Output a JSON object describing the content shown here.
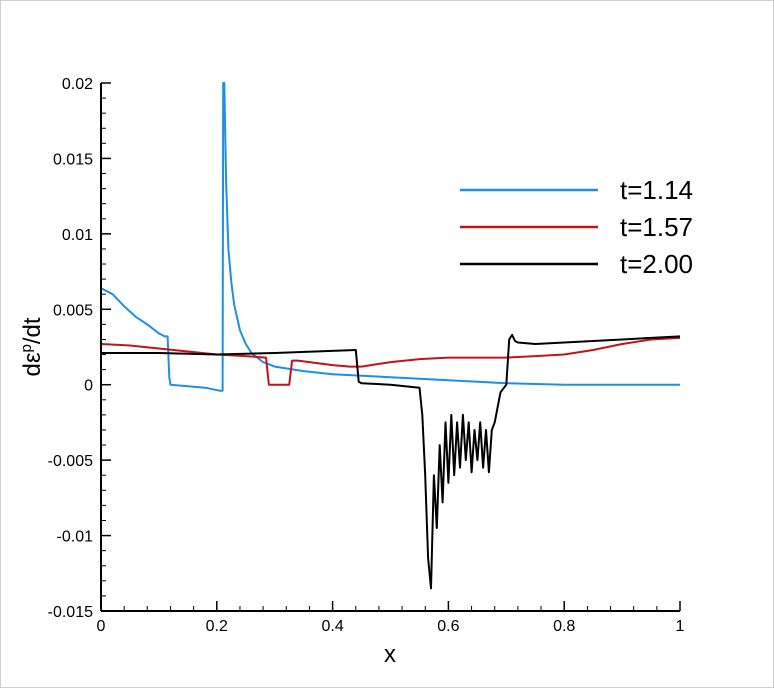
{
  "chart_data": {
    "type": "line",
    "xlabel": "x",
    "ylabel": "dε^p/dt",
    "ylabel_parts": {
      "main": "dε",
      "sup": "p",
      "tail": "/dt"
    },
    "xlim": [
      0,
      1
    ],
    "ylim": [
      -0.015,
      0.02
    ],
    "x_ticks": [
      0,
      0.2,
      0.4,
      0.6,
      0.8,
      1
    ],
    "x_tick_labels": [
      "0",
      "0.2",
      "0.4",
      "0.6",
      "0.8",
      "1"
    ],
    "y_ticks": [
      -0.015,
      -0.01,
      -0.005,
      0,
      0.005,
      0.01,
      0.015,
      0.02
    ],
    "y_tick_labels": [
      "-0.015",
      "-0.01",
      "-0.005",
      "0",
      "0.005",
      "0.01",
      "0.015",
      "0.02"
    ],
    "grid": false,
    "legend_position": "top-right",
    "series": [
      {
        "name": "t=1.14",
        "color": "#1e8fe6",
        "x": [
          0,
          0.02,
          0.04,
          0.06,
          0.08,
          0.09,
          0.1,
          0.105,
          0.11,
          0.115,
          0.118,
          0.12,
          0.15,
          0.18,
          0.205,
          0.21,
          0.211,
          0.213,
          0.216,
          0.22,
          0.225,
          0.23,
          0.24,
          0.25,
          0.26,
          0.28,
          0.3,
          0.35,
          0.4,
          0.5,
          0.6,
          0.7,
          0.8,
          1.0
        ],
        "y": [
          0.0064,
          0.006,
          0.0052,
          0.0045,
          0.004,
          0.0037,
          0.0034,
          0.0033,
          0.0032,
          0.0032,
          0.0005,
          0.0,
          -0.0001,
          -0.0002,
          -0.0004,
          -0.0004,
          0.02,
          0.02,
          0.0135,
          0.009,
          0.0068,
          0.0053,
          0.0036,
          0.0027,
          0.0021,
          0.0015,
          0.0012,
          0.0009,
          0.0007,
          0.0005,
          0.0003,
          0.0001,
          0.0,
          0.0
        ]
      },
      {
        "name": "t=1.57",
        "color": "#c0141a",
        "x": [
          0,
          0.05,
          0.1,
          0.15,
          0.2,
          0.25,
          0.285,
          0.29,
          0.295,
          0.32,
          0.325,
          0.33,
          0.34,
          0.36,
          0.4,
          0.43,
          0.45,
          0.5,
          0.55,
          0.6,
          0.65,
          0.7,
          0.75,
          0.8,
          0.85,
          0.9,
          0.95,
          1.0
        ],
        "y": [
          0.0027,
          0.0026,
          0.0024,
          0.0022,
          0.002,
          0.0019,
          0.0018,
          0.0,
          0.0,
          0.0,
          0.0,
          0.0016,
          0.0016,
          0.0015,
          0.0013,
          0.0012,
          0.0012,
          0.0015,
          0.0017,
          0.0018,
          0.0018,
          0.0018,
          0.0019,
          0.002,
          0.0023,
          0.0027,
          0.003,
          0.0031
        ]
      },
      {
        "name": "t=2.00",
        "color": "#000000",
        "x": [
          0,
          0.1,
          0.2,
          0.3,
          0.44,
          0.445,
          0.45,
          0.5,
          0.55,
          0.555,
          0.56,
          0.565,
          0.57,
          0.575,
          0.58,
          0.585,
          0.59,
          0.595,
          0.6,
          0.605,
          0.61,
          0.615,
          0.62,
          0.625,
          0.63,
          0.635,
          0.64,
          0.645,
          0.65,
          0.655,
          0.66,
          0.665,
          0.67,
          0.675,
          0.68,
          0.69,
          0.7,
          0.705,
          0.71,
          0.715,
          0.72,
          0.75,
          0.8,
          0.9,
          1.0
        ],
        "y": [
          0.0021,
          0.0021,
          0.002,
          0.0021,
          0.0023,
          0.0002,
          0.0001,
          0.0,
          -0.0002,
          -0.002,
          -0.006,
          -0.0115,
          -0.0135,
          -0.006,
          -0.0095,
          -0.004,
          -0.0078,
          -0.0025,
          -0.0065,
          -0.002,
          -0.006,
          -0.0025,
          -0.0055,
          -0.002,
          -0.005,
          -0.0025,
          -0.0058,
          -0.003,
          -0.005,
          -0.0025,
          -0.0055,
          -0.003,
          -0.0058,
          -0.003,
          -0.0025,
          -0.0005,
          0.0,
          0.003,
          0.0033,
          0.0029,
          0.0028,
          0.0027,
          0.0028,
          0.003,
          0.0032
        ]
      }
    ]
  }
}
